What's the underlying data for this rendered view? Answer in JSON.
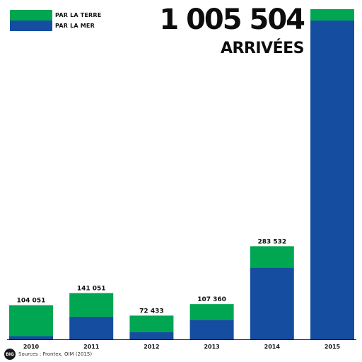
{
  "headline": {
    "total": "1 005 504",
    "subtitle": "ARRIVÉES"
  },
  "legend": [
    {
      "label": "PAR LA TERRE",
      "color": "#00a651"
    },
    {
      "label": "PAR LA MER",
      "color": "#154ea0"
    }
  ],
  "source": "Sources : Frontex, OIM (2015)",
  "logo_text": "BIG",
  "colors": {
    "land": "#00a651",
    "sea": "#154ea0",
    "axis": "#111111"
  },
  "chart_data": {
    "type": "bar",
    "stacked": true,
    "categories": [
      "2010",
      "2011",
      "2012",
      "2013",
      "2014",
      "2015"
    ],
    "series": [
      {
        "name": "PAR LA MER",
        "values": [
          9700,
          69000,
          22400,
          59600,
          219000,
          971000
        ]
      },
      {
        "name": "PAR LA TERRE",
        "values": [
          94351,
          72051,
          50033,
          47760,
          64532,
          34504
        ]
      }
    ],
    "totals_labels": [
      "104 051",
      "141 051",
      "72 433",
      "107 360",
      "283 532",
      ""
    ],
    "ylim": [
      0,
      1005504
    ],
    "grid": false,
    "legend_position": "top-left",
    "xlabel": "",
    "ylabel": ""
  }
}
